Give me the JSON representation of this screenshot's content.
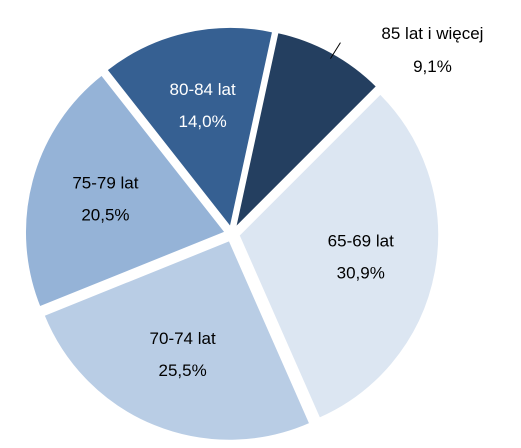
{
  "chart_data": {
    "type": "pie",
    "categories": [
      "65-69 lat",
      "70-74 lat",
      "75-79 lat",
      "80-84 lat",
      "85 lat i więcej"
    ],
    "values": [
      30.9,
      25.5,
      20.5,
      14.0,
      9.1
    ],
    "value_labels": [
      "30,9%",
      "25,5%",
      "20,5%",
      "14,0%",
      "9,1%"
    ],
    "colors": [
      "#dce6f2",
      "#b9cde5",
      "#95b3d7",
      "#366092",
      "#243f60"
    ],
    "label_colors": [
      "#000000",
      "#000000",
      "#000000",
      "#ffffff",
      "#000000"
    ]
  }
}
